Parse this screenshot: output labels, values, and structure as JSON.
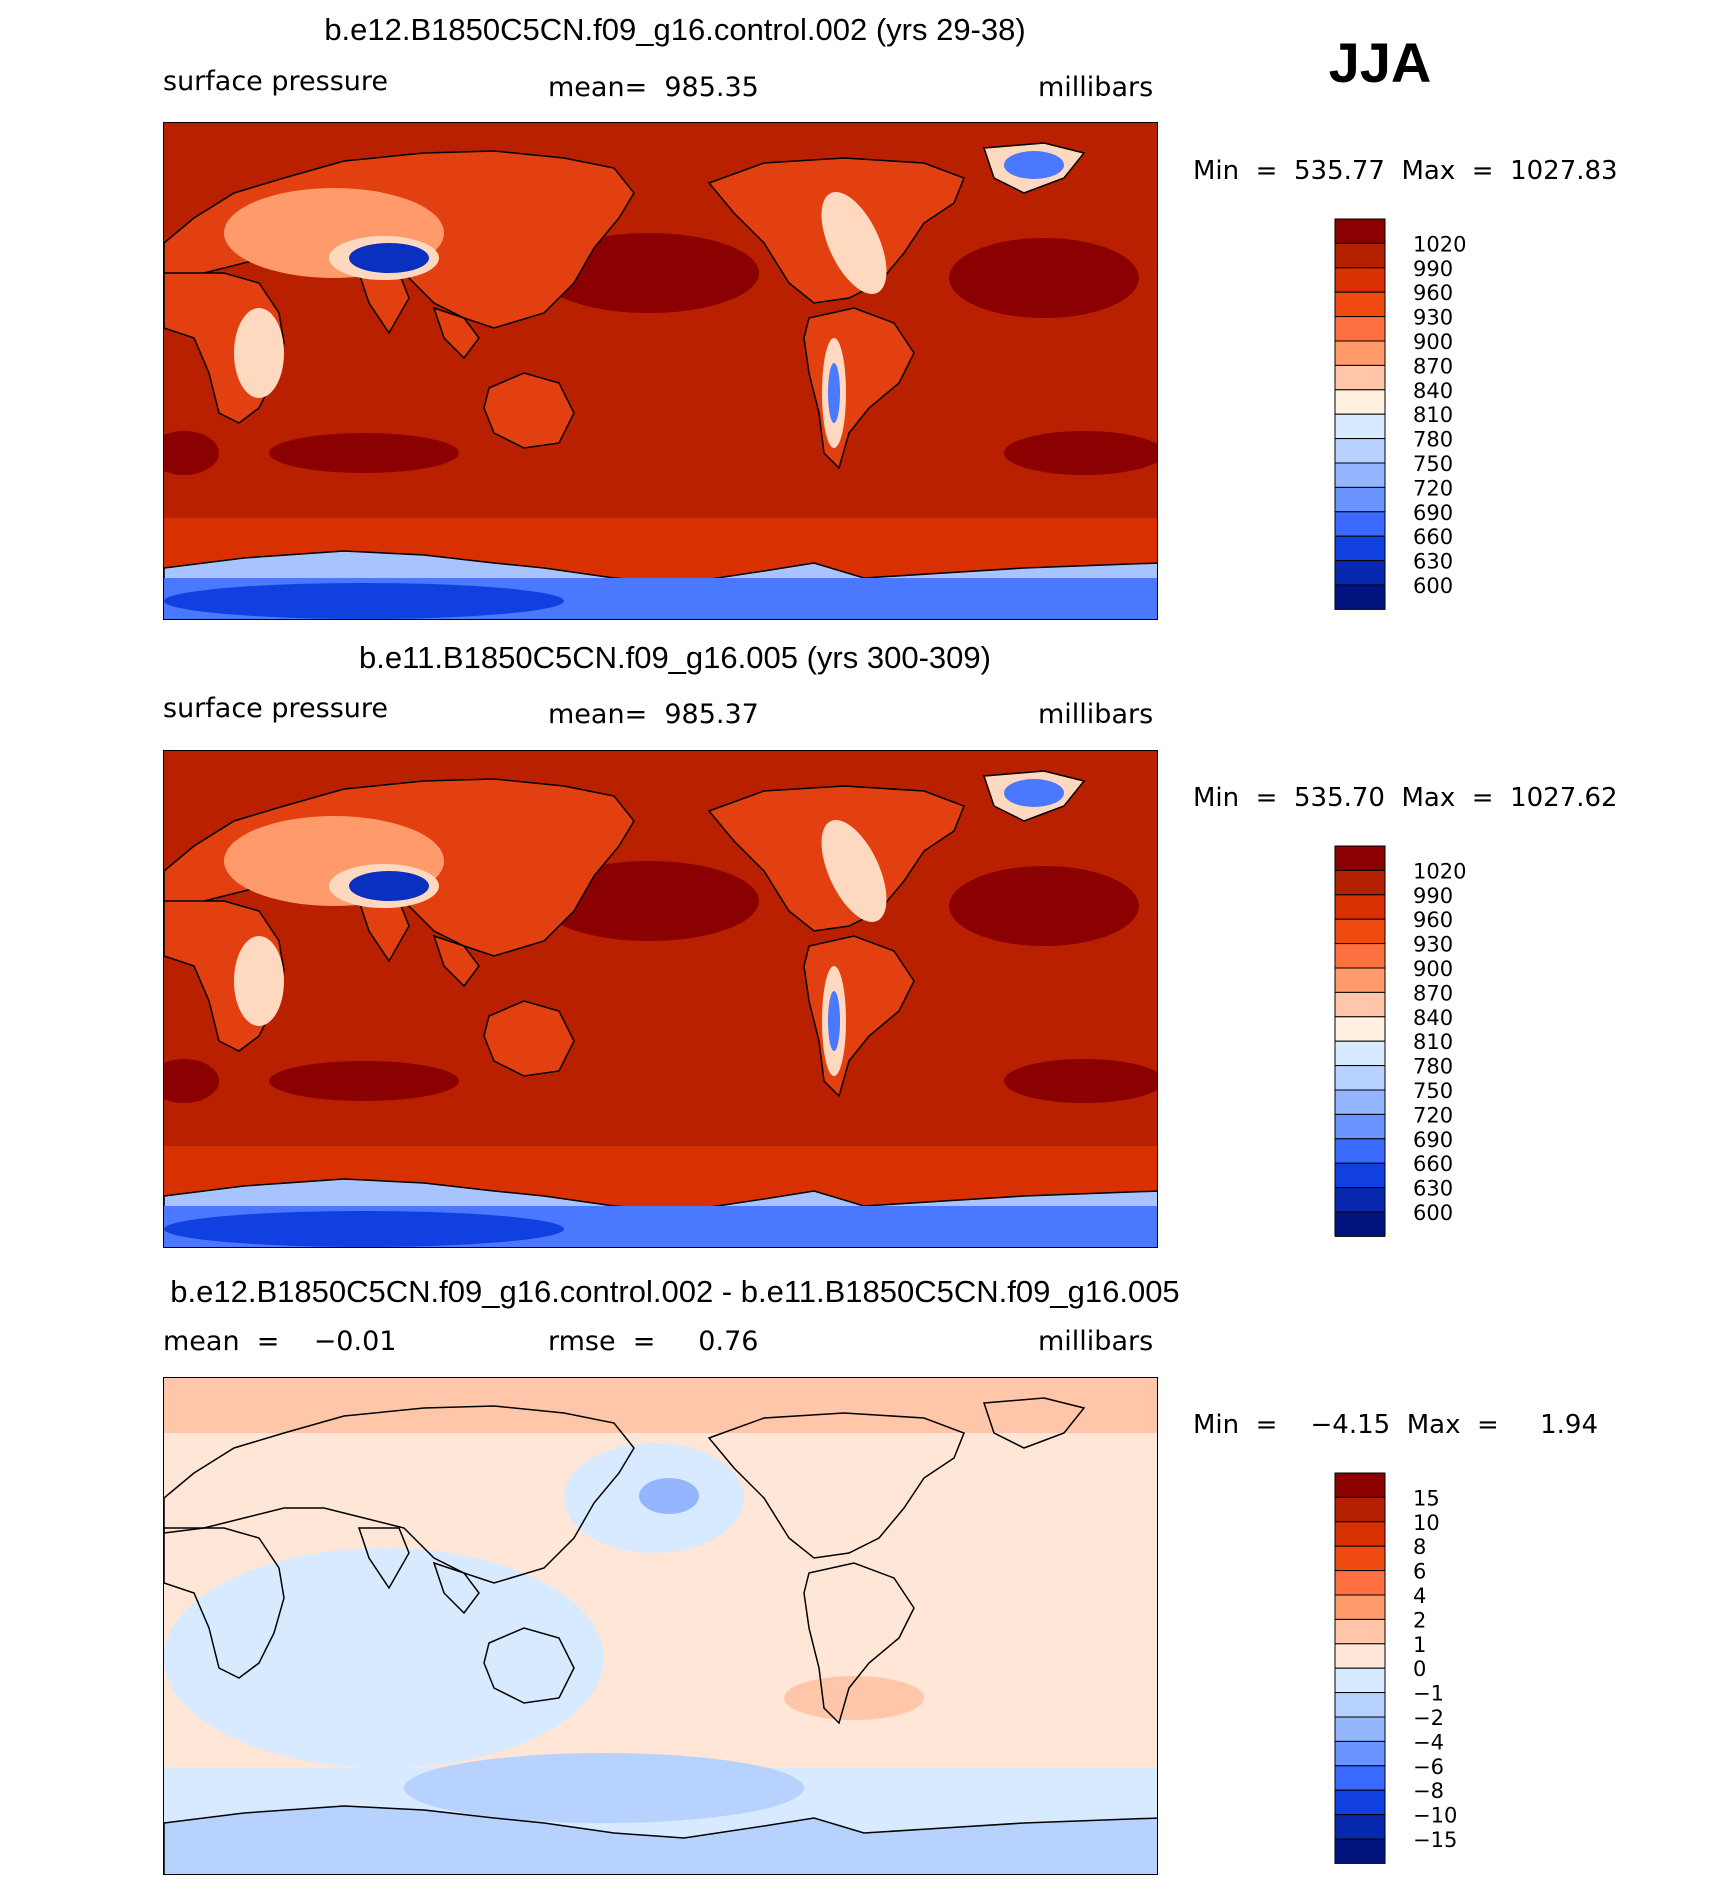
{
  "season": "JJA",
  "panels": [
    {
      "title": "b.e12.B1850C5CN.f09_g16.control.002 (yrs 29-38)",
      "left_label": "surface pressure",
      "center_label": "mean=  985.35",
      "right_label": "millibars",
      "minmax": "Min  =  535.77  Max  =  1027.83",
      "colorbar": {
        "labels": [
          "1020",
          "990",
          "960",
          "930",
          "900",
          "870",
          "840",
          "810",
          "780",
          "750",
          "720",
          "690",
          "660",
          "630",
          "600"
        ],
        "colors": [
          "#8b0000",
          "#b22000",
          "#d83000",
          "#ef4a10",
          "#ff7040",
          "#ff9a6a",
          "#ffc6aa",
          "#fff0e0",
          "#d8eaff",
          "#b8d2ff",
          "#94b6ff",
          "#6a94ff",
          "#3a6aff",
          "#1040e0",
          "#0828b0",
          "#001480"
        ]
      }
    },
    {
      "title": "b.e11.B1850C5CN.f09_g16.005 (yrs 300-309)",
      "left_label": "surface pressure",
      "center_label": "mean=  985.37",
      "right_label": "millibars",
      "minmax": "Min  =  535.70  Max  =  1027.62",
      "colorbar": {
        "labels": [
          "1020",
          "990",
          "960",
          "930",
          "900",
          "870",
          "840",
          "810",
          "780",
          "750",
          "720",
          "690",
          "660",
          "630",
          "600"
        ],
        "colors": [
          "#8b0000",
          "#b22000",
          "#d83000",
          "#ef4a10",
          "#ff7040",
          "#ff9a6a",
          "#ffc6aa",
          "#fff0e0",
          "#d8eaff",
          "#b8d2ff",
          "#94b6ff",
          "#6a94ff",
          "#3a6aff",
          "#1040e0",
          "#0828b0",
          "#001480"
        ]
      }
    },
    {
      "title": "b.e12.B1850C5CN.f09_g16.control.002 - b.e11.B1850C5CN.f09_g16.005",
      "left_label": "mean  =    −0.01",
      "center_label": "rmse  =     0.76",
      "right_label": "millibars",
      "minmax": "Min  =    −4.15  Max  =     1.94",
      "colorbar": {
        "labels": [
          "15",
          "10",
          "8",
          "6",
          "4",
          "2",
          "1",
          "0",
          "−1",
          "−2",
          "−4",
          "−6",
          "−8",
          "−10",
          "−15"
        ],
        "colors": [
          "#8b0000",
          "#b22000",
          "#d83000",
          "#ef4a10",
          "#ff7040",
          "#ff9a6a",
          "#ffc6aa",
          "#ffe6d6",
          "#d8eaff",
          "#b8d2ff",
          "#94b6ff",
          "#6a94ff",
          "#3a6aff",
          "#1040e0",
          "#0828b0",
          "#001480"
        ]
      }
    }
  ],
  "map_colors": {
    "ocean": "#b82000",
    "high": "#8b0000",
    "band": "#d83000",
    "land": "#e24010",
    "land_light": "#ff9a6a",
    "land_pale": "#ffd8c0",
    "plateau_blue": "#0a30c0",
    "ant_deep": "#1040e0",
    "ant_mid": "#4a78ff",
    "ant_light": "#a8c4ff",
    "diff_bg": "#ffe6d6",
    "diff_blue": "#d8eaff",
    "diff_blue2": "#b8d2ff",
    "diff_blue3": "#94b6ff",
    "diff_pos": "#ffc6aa"
  }
}
